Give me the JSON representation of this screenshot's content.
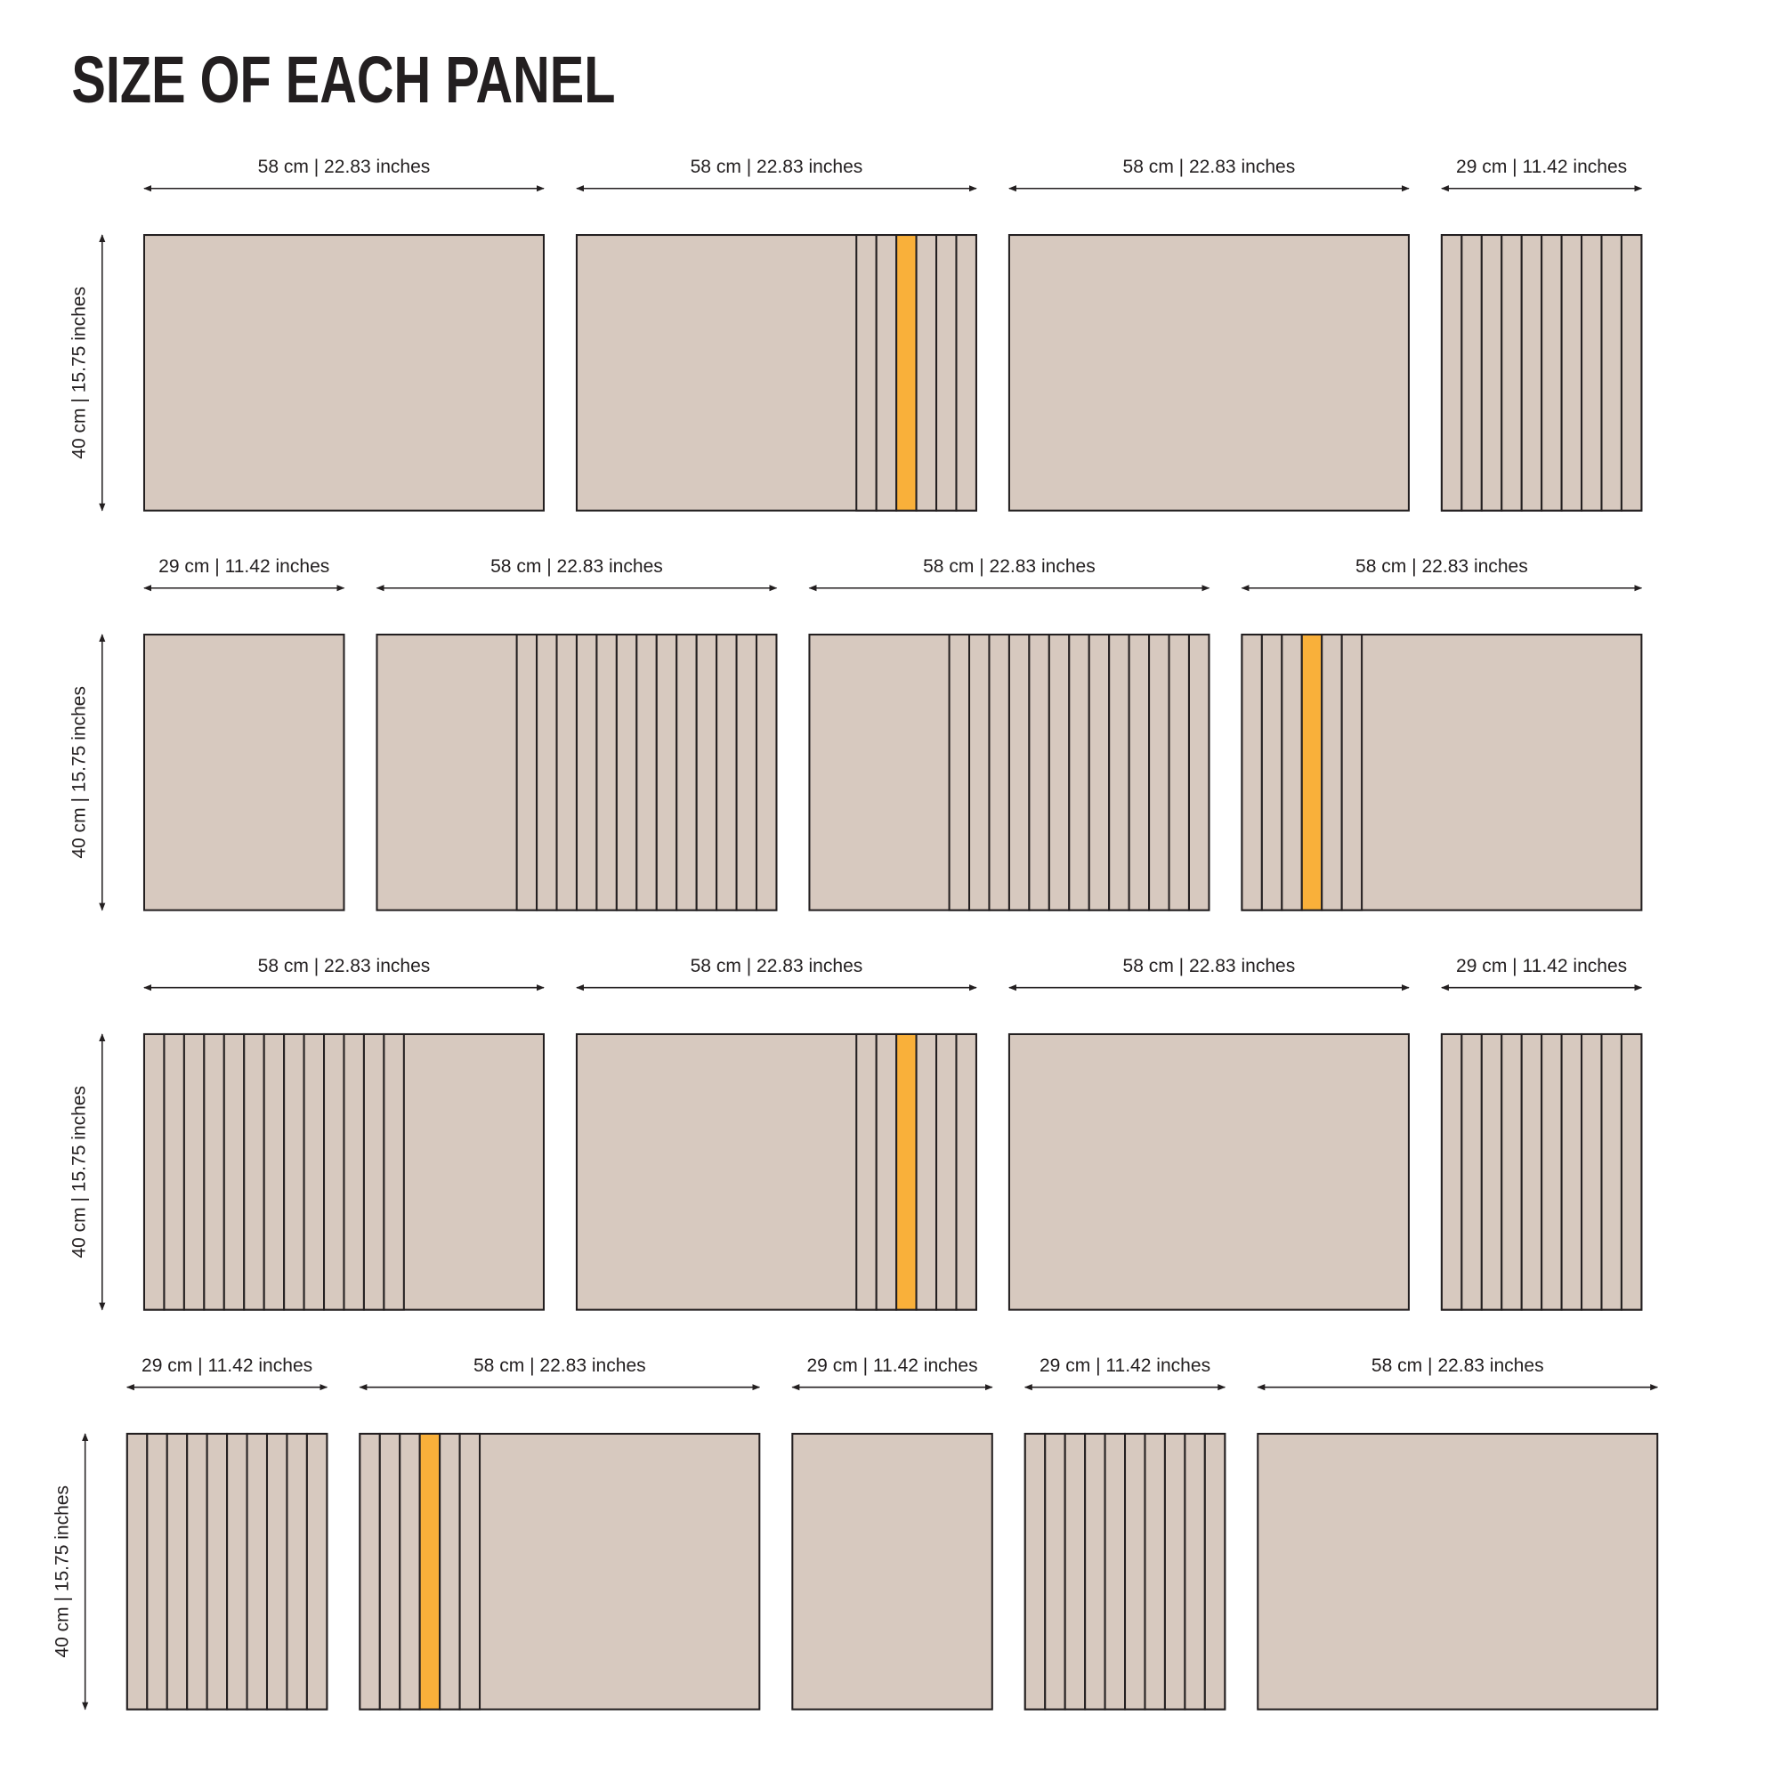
{
  "title": "SIZE OF EACH PANEL",
  "colors": {
    "panel_fill": "#d7c9bf",
    "highlight_fill": "#f9b03a",
    "outline": "#231f20",
    "text": "#231f20"
  },
  "panel_height_cm": 40,
  "rows": [
    {
      "height_label": "40 cm | 15.75 inches",
      "panels": [
        {
          "width_label": "58 cm | 22.83 inches",
          "width_cm": 58
        },
        {
          "width_label": "58 cm | 22.83 inches",
          "width_cm": 58,
          "slats": {
            "side": "right",
            "count": 6,
            "highlight": 3
          }
        },
        {
          "width_label": "58 cm | 22.83 inches",
          "width_cm": 58
        },
        {
          "width_label": "29 cm | 11.42 inches",
          "width_cm": 29,
          "slats": {
            "side": "full",
            "count": 10
          }
        }
      ]
    },
    {
      "height_label": "40 cm | 15.75 inches",
      "panels": [
        {
          "width_label": "29 cm | 11.42 inches",
          "width_cm": 29
        },
        {
          "width_label": "58 cm | 22.83 inches",
          "width_cm": 58,
          "slats": {
            "side": "right",
            "count": 13
          }
        },
        {
          "width_label": "58 cm | 22.83 inches",
          "width_cm": 58,
          "slats": {
            "side": "right",
            "count": 13
          }
        },
        {
          "width_label": "58 cm | 22.83 inches",
          "width_cm": 58,
          "slats": {
            "side": "left",
            "count": 6,
            "highlight": 4
          }
        }
      ]
    },
    {
      "height_label": "40 cm | 15.75 inches",
      "panels": [
        {
          "width_label": "58 cm | 22.83 inches",
          "width_cm": 58,
          "slats": {
            "side": "left",
            "count": 13
          }
        },
        {
          "width_label": "58 cm | 22.83 inches",
          "width_cm": 58,
          "slats": {
            "side": "right",
            "count": 6,
            "highlight": 3
          }
        },
        {
          "width_label": "58 cm | 22.83 inches",
          "width_cm": 58
        },
        {
          "width_label": "29 cm | 11.42 inches",
          "width_cm": 29,
          "slats": {
            "side": "full",
            "count": 10
          }
        }
      ]
    },
    {
      "height_label": "40 cm | 15.75 inches",
      "panels": [
        {
          "width_label": "29 cm | 11.42 inches",
          "width_cm": 29,
          "slats": {
            "side": "full",
            "count": 10
          }
        },
        {
          "width_label": "58 cm | 22.83 inches",
          "width_cm": 58,
          "slats": {
            "side": "left",
            "count": 6,
            "highlight": 4
          }
        },
        {
          "width_label": "29 cm | 11.42 inches",
          "width_cm": 29
        },
        {
          "width_label": "29 cm | 11.42 inches",
          "width_cm": 29,
          "slats": {
            "side": "full",
            "count": 10
          }
        },
        {
          "width_label": "58 cm | 22.83 inches",
          "width_cm": 58
        }
      ]
    }
  ]
}
